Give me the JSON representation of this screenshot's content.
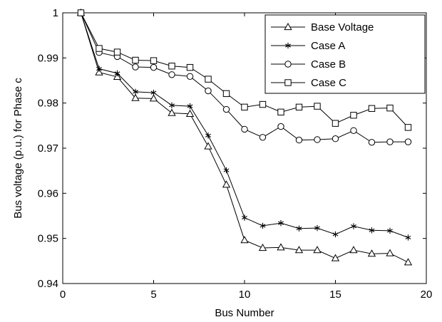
{
  "chart_data": {
    "type": "line",
    "title": "",
    "xlabel": "Bus Number",
    "ylabel": "Bus voltage (p.u.)  for Phase c",
    "xlim": [
      0,
      20
    ],
    "ylim": [
      0.94,
      1.0
    ],
    "xticks": [
      0,
      5,
      10,
      15,
      20
    ],
    "yticks": [
      0.94,
      0.95,
      0.96,
      0.97,
      0.98,
      0.99,
      1.0
    ],
    "xtick_labels": [
      "0",
      "5",
      "10",
      "15",
      "20"
    ],
    "ytick_labels": [
      "0.94",
      "0.95",
      "0.96",
      "0.97",
      "0.98",
      "0.99",
      "1"
    ],
    "grid": false,
    "legend_position": "top-right",
    "x": [
      1,
      2,
      3,
      4,
      5,
      6,
      7,
      8,
      9,
      10,
      11,
      12,
      13,
      14,
      15,
      16,
      17,
      18,
      19
    ],
    "series": [
      {
        "name": "Base Voltage",
        "marker": "triangle",
        "values": [
          1.0,
          0.9868,
          0.9858,
          0.9811,
          0.981,
          0.9778,
          0.9776,
          0.9704,
          0.9619,
          0.9496,
          0.9479,
          0.948,
          0.9474,
          0.9474,
          0.9456,
          0.9474,
          0.9466,
          0.9467,
          0.9447
        ]
      },
      {
        "name": "Case A",
        "marker": "star",
        "values": [
          1.0,
          0.9876,
          0.9866,
          0.9825,
          0.9823,
          0.9795,
          0.9793,
          0.9728,
          0.9651,
          0.9546,
          0.9528,
          0.9534,
          0.9522,
          0.9523,
          0.9509,
          0.9527,
          0.9518,
          0.9517,
          0.9502
        ]
      },
      {
        "name": "Case B",
        "marker": "circle",
        "values": [
          1.0,
          0.9912,
          0.9903,
          0.988,
          0.9879,
          0.9863,
          0.9859,
          0.9827,
          0.9786,
          0.9742,
          0.9724,
          0.9748,
          0.9718,
          0.9719,
          0.9721,
          0.9739,
          0.9713,
          0.9714,
          0.9714
        ]
      },
      {
        "name": "Case C",
        "marker": "square",
        "values": [
          1.0,
          0.9921,
          0.9913,
          0.9895,
          0.9894,
          0.9882,
          0.9879,
          0.9853,
          0.9821,
          0.9791,
          0.9797,
          0.978,
          0.9791,
          0.9793,
          0.9755,
          0.9773,
          0.9788,
          0.9789,
          0.9746
        ]
      }
    ],
    "colors": {
      "line": "#000000",
      "background": "#ffffff"
    }
  }
}
